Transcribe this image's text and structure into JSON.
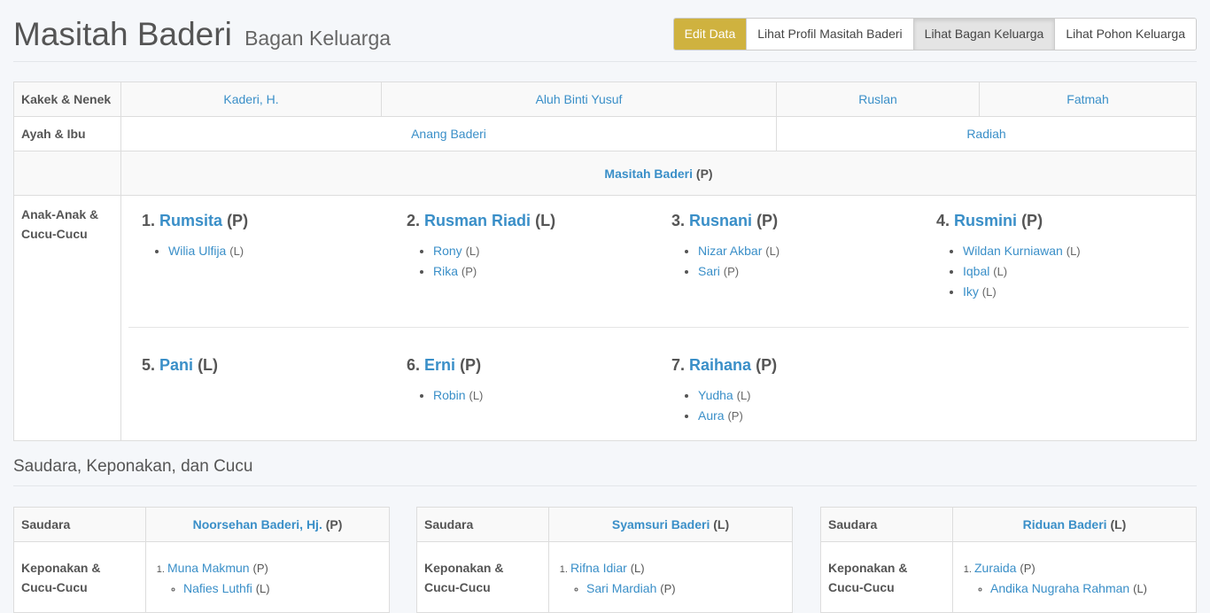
{
  "header": {
    "title": "Masitah Baderi",
    "subtitle": "Bagan Keluarga",
    "buttons": [
      "Edit Data",
      "Lihat Profil Masitah Baderi",
      "Lihat Bagan Keluarga",
      "Lihat Pohon Keluarga"
    ],
    "active_button": "Lihat Bagan Keluarga",
    "edit_color": "#cfb23f"
  },
  "chart": {
    "grandparents_label": "Kakek & Nenek",
    "grandparents": [
      "Kaderi, H.",
      "Aluh Binti Yusuf",
      "Ruslan",
      "Fatmah"
    ],
    "parents_label": "Ayah & Ibu",
    "parents": [
      "Anang Baderi",
      "Radiah"
    ],
    "self": {
      "name": "Masitah Baderi",
      "gender": "(P)"
    },
    "children_label": "Anak-Anak & Cucu-Cucu",
    "children": [
      {
        "num": "1.",
        "name": "Rumsita",
        "gender": "(P)",
        "grandchildren": [
          {
            "name": "Wilia Ulfija",
            "gender": "(L)"
          }
        ]
      },
      {
        "num": "2.",
        "name": "Rusman Riadi",
        "gender": "(L)",
        "grandchildren": [
          {
            "name": "Rony",
            "gender": "(L)"
          },
          {
            "name": "Rika",
            "gender": "(P)"
          }
        ]
      },
      {
        "num": "3.",
        "name": "Rusnani",
        "gender": "(P)",
        "grandchildren": [
          {
            "name": "Nizar Akbar",
            "gender": "(L)"
          },
          {
            "name": "Sari",
            "gender": "(P)"
          }
        ]
      },
      {
        "num": "4.",
        "name": "Rusmini",
        "gender": "(P)",
        "grandchildren": [
          {
            "name": "Wildan Kurniawan",
            "gender": "(L)"
          },
          {
            "name": "Iqbal",
            "gender": "(L)"
          },
          {
            "name": "Iky",
            "gender": "(L)"
          }
        ]
      },
      {
        "num": "5.",
        "name": "Pani",
        "gender": "(L)",
        "grandchildren": []
      },
      {
        "num": "6.",
        "name": "Erni",
        "gender": "(P)",
        "grandchildren": [
          {
            "name": "Robin",
            "gender": "(L)"
          }
        ]
      },
      {
        "num": "7.",
        "name": "Raihana",
        "gender": "(P)",
        "grandchildren": [
          {
            "name": "Yudha",
            "gender": "(L)"
          },
          {
            "name": "Aura",
            "gender": "(P)"
          }
        ]
      }
    ]
  },
  "siblings_section": {
    "title": "Saudara, Keponakan, dan Cucu",
    "sibling_label": "Saudara",
    "nephew_label": "Keponakan & Cucu-Cucu",
    "siblings": [
      {
        "name": "Noorsehan Baderi, Hj.",
        "gender": "(P)",
        "nephews": [
          {
            "name": "Muna Makmun",
            "gender": "(P)",
            "children": [
              {
                "name": "Nafies Luthfi",
                "gender": "(L)"
              }
            ]
          }
        ]
      },
      {
        "name": "Syamsuri Baderi",
        "gender": "(L)",
        "nephews": [
          {
            "name": "Rifna Idiar",
            "gender": "(L)",
            "children": [
              {
                "name": "Sari Mardiah",
                "gender": "(P)"
              }
            ]
          }
        ]
      },
      {
        "name": "Riduan Baderi",
        "gender": "(L)",
        "nephews": [
          {
            "name": "Zuraida",
            "gender": "(P)",
            "children": [
              {
                "name": "Andika Nugraha Rahman",
                "gender": "(L)"
              }
            ]
          }
        ]
      }
    ]
  }
}
